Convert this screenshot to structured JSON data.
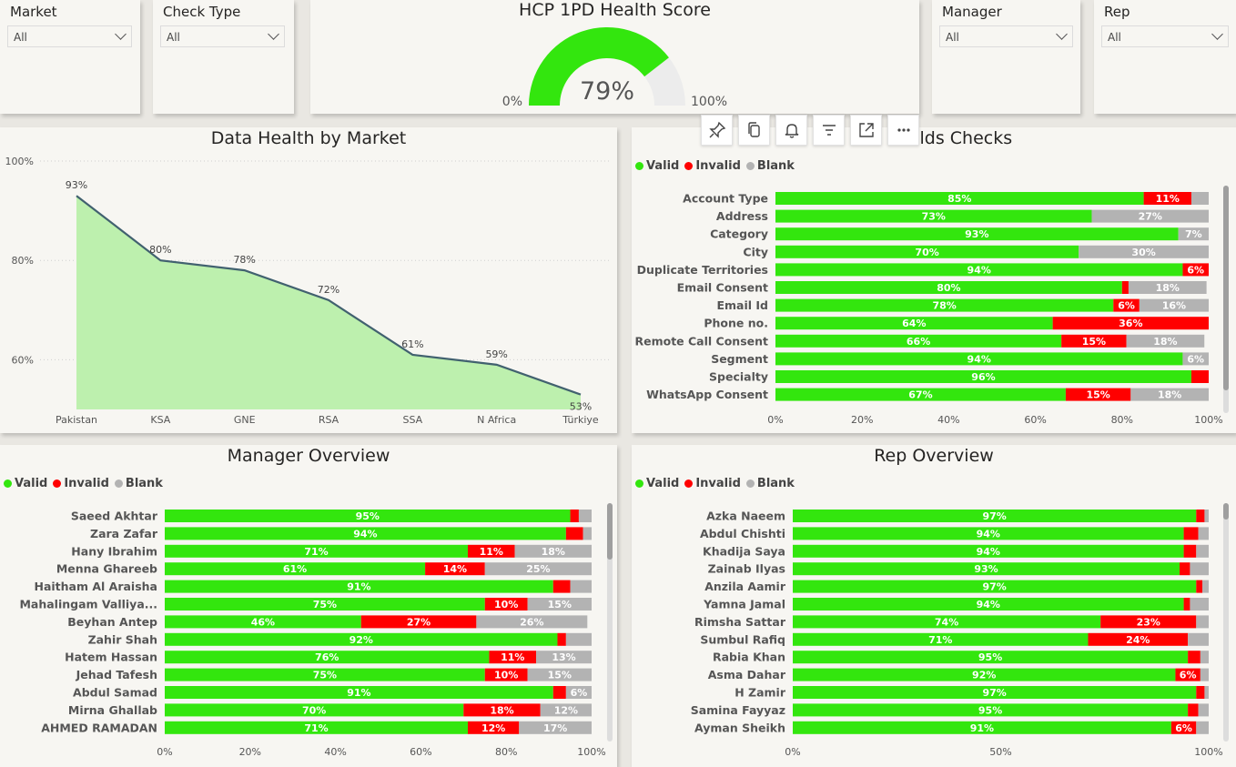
{
  "filters": {
    "market": {
      "label": "Market",
      "value": "All"
    },
    "check_type": {
      "label": "Check Type",
      "value": "All"
    },
    "manager": {
      "label": "Manager",
      "value": "All"
    },
    "rep": {
      "label": "Rep",
      "value": "All"
    }
  },
  "gauge": {
    "title": "HCP 1PD Health Score",
    "value": 0.79,
    "value_label": "79%",
    "min_label": "0%",
    "max_label": "100%",
    "colors": {
      "fill": "#33e60e",
      "track": "#ececec"
    }
  },
  "toolbar": [
    "pin-icon",
    "copy-icon",
    "bell-icon",
    "filter-icon",
    "focus-mode-icon",
    "more-options-icon"
  ],
  "legend": {
    "valid": "Valid",
    "invalid": "Invalid",
    "blank": "Blank"
  },
  "colors": {
    "valid": "#33e60e",
    "invalid": "#ff0000",
    "blank": "#b3b3b3",
    "area": "#bdf0ae",
    "line": "#41616f"
  },
  "chart_data": [
    {
      "type": "area",
      "title": "Data Health by Market",
      "categories": [
        "Pakistan",
        "KSA",
        "GNE",
        "RSA",
        "SSA",
        "N Africa",
        "Türkiye"
      ],
      "values": [
        93,
        80,
        78,
        72,
        61,
        59,
        53
      ],
      "data_labels": [
        "93%",
        "80%",
        "78%",
        "72%",
        "61%",
        "59%",
        "53%"
      ],
      "ylim": [
        50,
        100
      ],
      "yticks": [
        60,
        80,
        100
      ],
      "ytick_labels": [
        "60%",
        "80%",
        "100%"
      ],
      "grid": true
    },
    {
      "type": "bar",
      "stacked": true,
      "orientation": "horizontal",
      "title": "Fields Checks",
      "categories": [
        "Account Type",
        "Address",
        "Category",
        "City",
        "Duplicate Territories",
        "Email Consent",
        "Email Id",
        "Phone no.",
        "Remote Call Consent",
        "Segment",
        "Specialty",
        "WhatsApp Consent"
      ],
      "series": [
        {
          "name": "Valid",
          "values": [
            85,
            73,
            93,
            70,
            94,
            80,
            78,
            64,
            66,
            94,
            96,
            67
          ]
        },
        {
          "name": "Invalid",
          "values": [
            11,
            0,
            0,
            0,
            6,
            1.5,
            6,
            36,
            15,
            0,
            4,
            15
          ]
        },
        {
          "name": "Blank",
          "values": [
            4,
            27,
            7,
            30,
            0,
            18,
            16,
            0,
            18,
            6,
            0,
            18
          ]
        }
      ],
      "data_labels": [
        [
          "85%",
          "11%",
          ""
        ],
        [
          "73%",
          "",
          "27%"
        ],
        [
          "93%",
          "",
          "7%"
        ],
        [
          "70%",
          "",
          "30%"
        ],
        [
          "94%",
          "6%",
          ""
        ],
        [
          "80%",
          "",
          "18%"
        ],
        [
          "78%",
          "6%",
          "16%"
        ],
        [
          "64%",
          "36%",
          ""
        ],
        [
          "66%",
          "15%",
          "18%"
        ],
        [
          "94%",
          "",
          "6%"
        ],
        [
          "96%",
          "",
          ""
        ],
        [
          "67%",
          "15%",
          "18%"
        ]
      ],
      "xticks": [
        "0%",
        "20%",
        "40%",
        "60%",
        "80%",
        "100%"
      ],
      "xlim": [
        0,
        100
      ]
    },
    {
      "type": "bar",
      "stacked": true,
      "orientation": "horizontal",
      "title": "Manager Overview",
      "categories": [
        "Saeed Akhtar",
        "Zara Zafar",
        "Hany Ibrahim",
        "Menna Ghareeb",
        "Haitham Al Araisha",
        "Mahalingam Valliya...",
        "Beyhan Antep",
        "Zahir Shah",
        "Hatem Hassan",
        "Jehad Tafesh",
        "Abdul Samad",
        "Mirna Ghallab",
        "AHMED RAMADAN"
      ],
      "series": [
        {
          "name": "Valid",
          "values": [
            95,
            94,
            71,
            61,
            91,
            75,
            46,
            92,
            76,
            75,
            91,
            70,
            71
          ]
        },
        {
          "name": "Invalid",
          "values": [
            2,
            4,
            11,
            14,
            4,
            10,
            27,
            2,
            11,
            10,
            3,
            18,
            12
          ]
        },
        {
          "name": "Blank",
          "values": [
            3,
            2,
            18,
            25,
            5,
            15,
            26,
            6,
            13,
            15,
            6,
            12,
            17
          ]
        }
      ],
      "data_labels": [
        [
          "95%",
          "",
          ""
        ],
        [
          "94%",
          "",
          ""
        ],
        [
          "71%",
          "11%",
          "18%"
        ],
        [
          "61%",
          "14%",
          "25%"
        ],
        [
          "91%",
          "",
          ""
        ],
        [
          "75%",
          "10%",
          "15%"
        ],
        [
          "46%",
          "27%",
          "26%"
        ],
        [
          "92%",
          "",
          ""
        ],
        [
          "76%",
          "11%",
          "13%"
        ],
        [
          "75%",
          "10%",
          "15%"
        ],
        [
          "91%",
          "",
          "6%"
        ],
        [
          "70%",
          "18%",
          "12%"
        ],
        [
          "71%",
          "12%",
          "17%"
        ]
      ],
      "xticks": [
        "0%",
        "20%",
        "40%",
        "60%",
        "80%",
        "100%"
      ],
      "xlim": [
        0,
        100
      ]
    },
    {
      "type": "bar",
      "stacked": true,
      "orientation": "horizontal",
      "title": "Rep Overview",
      "categories": [
        "Azka Naeem",
        "Abdul Chishti",
        "Khadija Saya",
        "Zainab Ilyas",
        "Anzila Aamir",
        "Yamna Jamal",
        "Rimsha Sattar",
        "Sumbul Rafiq",
        "Rabia Khan",
        "Asma Dahar",
        "H Zamir",
        "Samina Fayyaz",
        "Ayman Sheikh"
      ],
      "series": [
        {
          "name": "Valid",
          "values": [
            97,
            94,
            94,
            93,
            97,
            94,
            74,
            71,
            95,
            92,
            97,
            95,
            91
          ]
        },
        {
          "name": "Invalid",
          "values": [
            2,
            3.5,
            3,
            2.5,
            1.5,
            1.5,
            23,
            24,
            3,
            6,
            2,
            2.5,
            6
          ]
        },
        {
          "name": "Blank",
          "values": [
            1,
            2.5,
            3,
            4.5,
            1.5,
            4.5,
            3,
            5,
            2,
            2,
            1,
            2.5,
            3
          ]
        }
      ],
      "data_labels": [
        [
          "97%",
          "",
          ""
        ],
        [
          "94%",
          "",
          ""
        ],
        [
          "94%",
          "",
          ""
        ],
        [
          "93%",
          "",
          ""
        ],
        [
          "97%",
          "",
          ""
        ],
        [
          "94%",
          "",
          ""
        ],
        [
          "74%",
          "23%",
          ""
        ],
        [
          "71%",
          "24%",
          ""
        ],
        [
          "95%",
          "",
          ""
        ],
        [
          "92%",
          "6%",
          ""
        ],
        [
          "97%",
          "",
          ""
        ],
        [
          "95%",
          "",
          ""
        ],
        [
          "91%",
          "6%",
          ""
        ]
      ],
      "xticks": [
        "0%",
        "50%",
        "100%"
      ],
      "xlim": [
        0,
        100
      ]
    }
  ]
}
